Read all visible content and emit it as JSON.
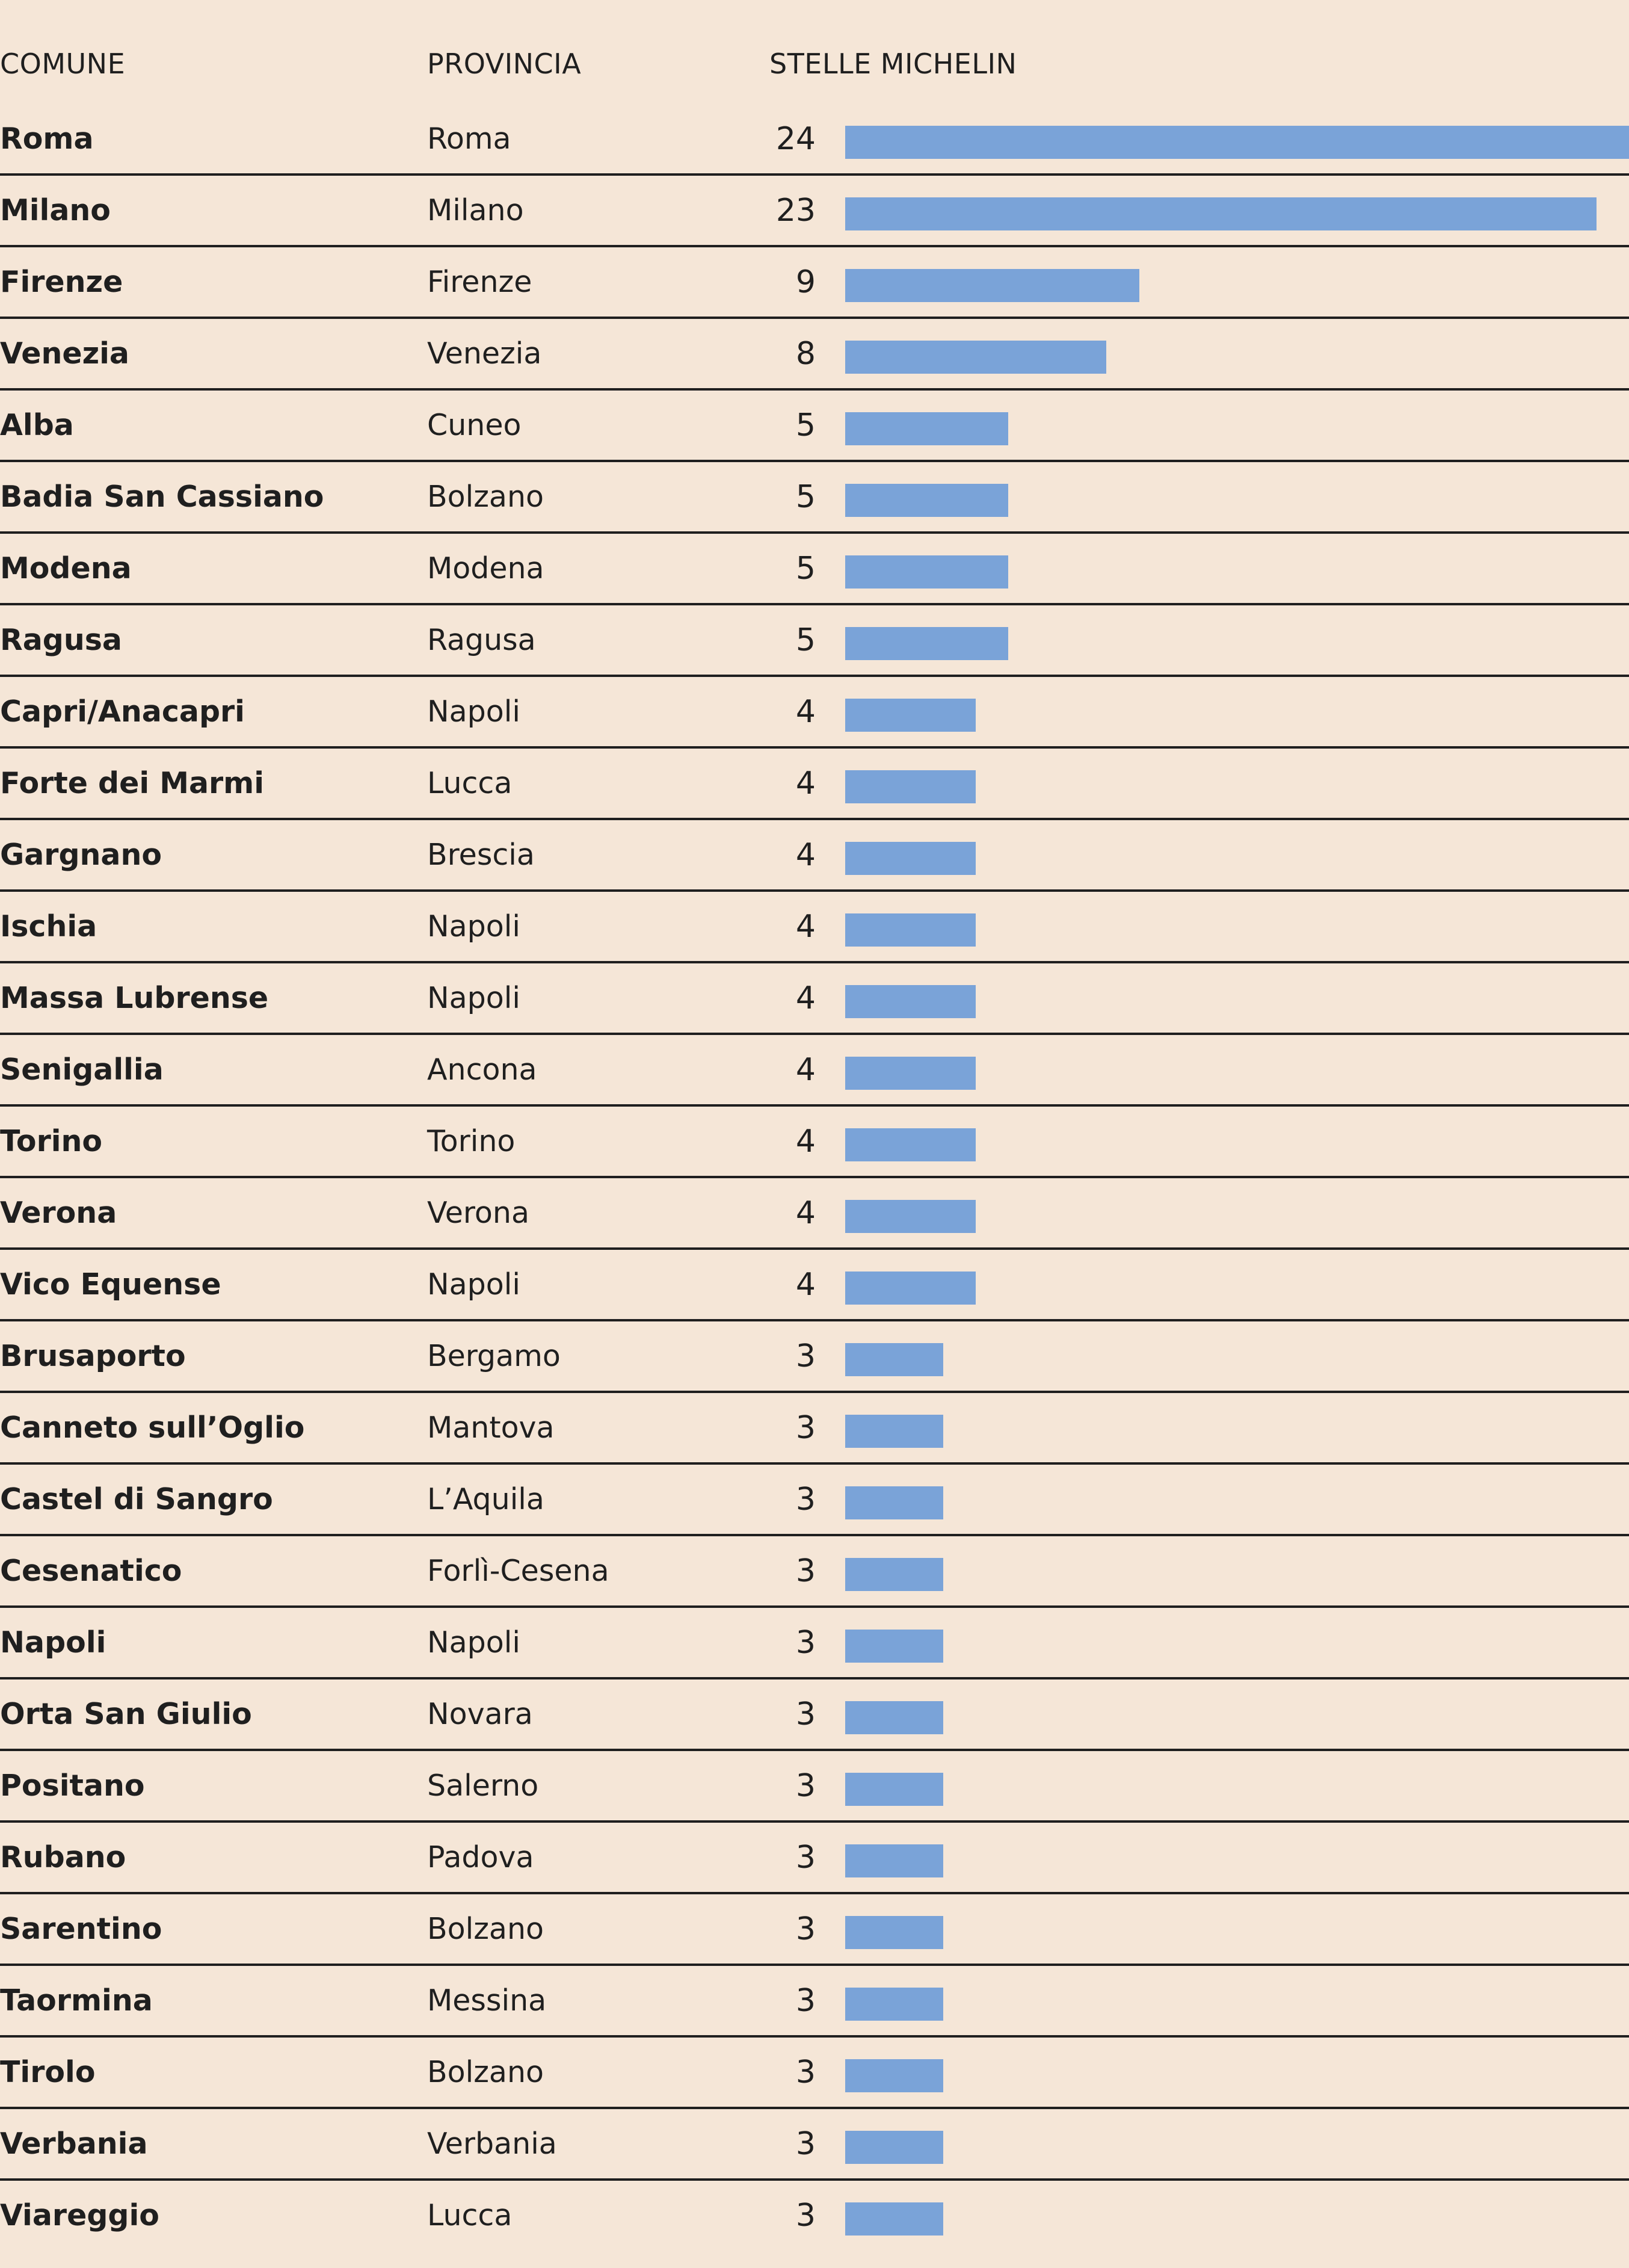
{
  "chart_data": {
    "type": "bar",
    "orientation": "horizontal",
    "headers": {
      "comune": "COMUNE",
      "provincia": "PROVINCIA",
      "stelle": "STELLE MICHELIN"
    },
    "rows": [
      {
        "comune": "Roma",
        "provincia": "Roma",
        "value": 24
      },
      {
        "comune": "Milano",
        "provincia": "Milano",
        "value": 23
      },
      {
        "comune": "Firenze",
        "provincia": "Firenze",
        "value": 9
      },
      {
        "comune": "Venezia",
        "provincia": "Venezia",
        "value": 8
      },
      {
        "comune": "Alba",
        "provincia": "Cuneo",
        "value": 5
      },
      {
        "comune": "Badia San Cassiano",
        "provincia": "Bolzano",
        "value": 5
      },
      {
        "comune": "Modena",
        "provincia": "Modena",
        "value": 5
      },
      {
        "comune": "Ragusa",
        "provincia": "Ragusa",
        "value": 5
      },
      {
        "comune": "Capri/Anacapri",
        "provincia": "Napoli",
        "value": 4
      },
      {
        "comune": "Forte dei Marmi",
        "provincia": "Lucca",
        "value": 4
      },
      {
        "comune": "Gargnano",
        "provincia": "Brescia",
        "value": 4
      },
      {
        "comune": "Ischia",
        "provincia": "Napoli",
        "value": 4
      },
      {
        "comune": "Massa Lubrense",
        "provincia": "Napoli",
        "value": 4
      },
      {
        "comune": "Senigallia",
        "provincia": "Ancona",
        "value": 4
      },
      {
        "comune": "Torino",
        "provincia": "Torino",
        "value": 4
      },
      {
        "comune": "Verona",
        "provincia": "Verona",
        "value": 4
      },
      {
        "comune": "Vico Equense",
        "provincia": "Napoli",
        "value": 4
      },
      {
        "comune": "Brusaporto",
        "provincia": "Bergamo",
        "value": 3
      },
      {
        "comune": "Canneto sull’Oglio",
        "provincia": "Mantova",
        "value": 3
      },
      {
        "comune": "Castel di Sangro",
        "provincia": "L’Aquila",
        "value": 3
      },
      {
        "comune": "Cesenatico",
        "provincia": "Forlì-Cesena",
        "value": 3
      },
      {
        "comune": "Napoli",
        "provincia": "Napoli",
        "value": 3
      },
      {
        "comune": "Orta San Giulio",
        "provincia": "Novara",
        "value": 3
      },
      {
        "comune": "Positano",
        "provincia": "Salerno",
        "value": 3
      },
      {
        "comune": "Rubano",
        "provincia": "Padova",
        "value": 3
      },
      {
        "comune": "Sarentino",
        "provincia": "Bolzano",
        "value": 3
      },
      {
        "comune": "Taormina",
        "provincia": "Messina",
        "value": 3
      },
      {
        "comune": "Tirolo",
        "provincia": "Bolzano",
        "value": 3
      },
      {
        "comune": "Verbania",
        "provincia": "Verbania",
        "value": 3
      },
      {
        "comune": "Viareggio",
        "provincia": "Lucca",
        "value": 3
      }
    ],
    "xlim": [
      0,
      24
    ],
    "bar_color": "#7aa3d8",
    "background_color": "#f5e6d7",
    "grid": false
  }
}
